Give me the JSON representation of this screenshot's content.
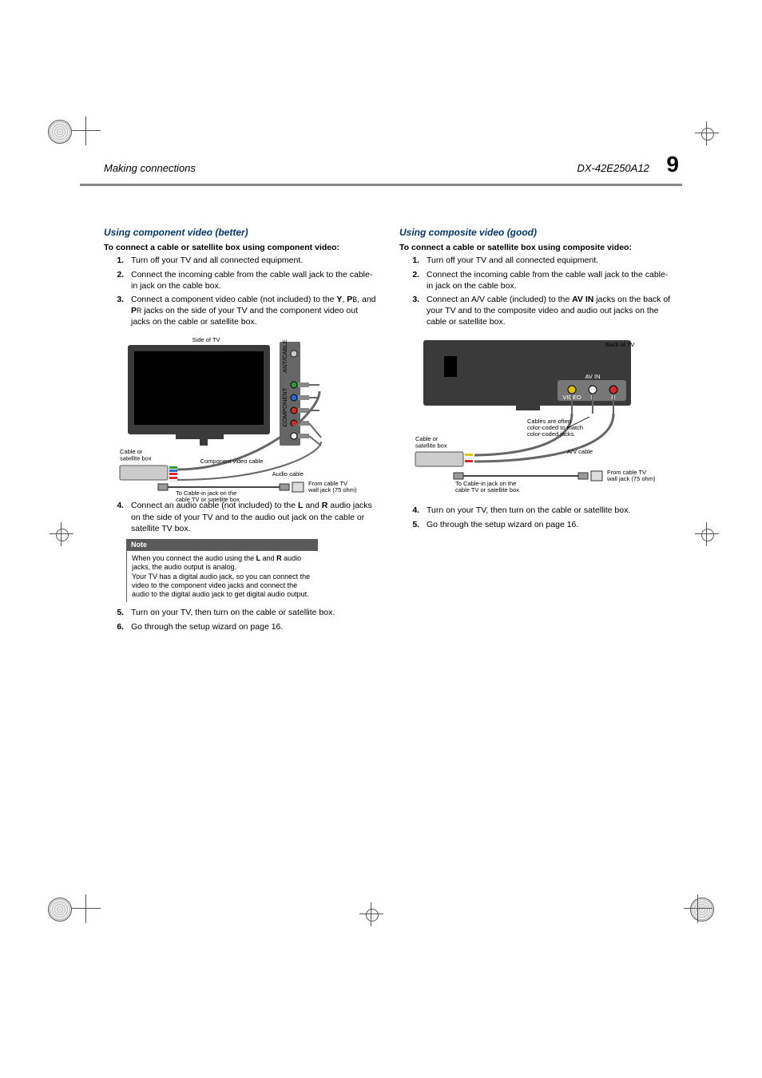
{
  "header": {
    "left": "Making connections",
    "model": "DX-42E250A12",
    "page_number": "9"
  },
  "colors": {
    "rule_gray": "#878787",
    "accent_blue": "#07396b",
    "note_bg": "#5a5a5a",
    "text": "#000000",
    "bg": "#ffffff"
  },
  "left_section": {
    "heading": "Using component video (better)",
    "procedure_title": "To connect a cable or satellite box using component video:",
    "steps_a": [
      "Turn off your TV and all connected equipment.",
      "Connect the incoming cable from the cable wall jack to the cable-in jack on the cable box.",
      "Connect a component video cable (not included) to the <b>Y</b>, <b>P</b><small>B</small>, and <b>P</b><small>R</small> jacks on the side of your TV and the component video out jacks on the cable or satellite box."
    ],
    "diagram1": {
      "side_label": "Side of TV",
      "ant_label": "ANT/CABLE",
      "comp_label": "COMPONENT",
      "box_label": "Cable or\nsatellite box",
      "comp_cable": "Component video cable",
      "audio_cable": "Audio cable",
      "from_wall": "From cable TV\nwall jack (75 ohm)",
      "cablein": "To Cable-in jack on the\ncable TV or satellite box",
      "jack_colors": [
        "#2aa02a",
        "#2a6bd4",
        "#d42a2a",
        "#d42a2a",
        "#f0f0f0"
      ]
    },
    "step4": "Connect an audio cable (not included) to the <b>L</b> and <b>R</b> audio jacks on the side of your TV and to the audio out jack on the cable or satellite TV box.",
    "note": {
      "title": "Note",
      "body": "When you connect the audio using the <b>L</b> and <b>R</b> audio jacks, the audio output is analog.<br>Your TV has a digital audio jack, so you can connect the video to the component video jacks and connect the audio to the digital audio jack to get digital audio output."
    },
    "step5": "Turn on your TV, then turn on the cable or satellite box.",
    "step6": "Go through the setup wizard on page 16."
  },
  "right_section": {
    "heading": "Using composite video (good)",
    "procedure_title": "To connect a cable or satellite box using composite video:",
    "steps_a": [
      "Turn off your TV and all connected equipment.",
      "Connect the incoming cable from the cable wall jack to the cable-in jack on the cable box.",
      "Connect an A/V cable (included) to the <b>AV IN</b> jacks on the back of your TV and to the composite video and audio out jacks on the cable or satellite box."
    ],
    "diagram2": {
      "back_label": "Back of TV",
      "avin_label": "AV IN",
      "v_label": "VIDEO",
      "l_label": "L",
      "r_label": "R",
      "box_label": "Cable or\nsatellite box",
      "color_note": "Cables are often\ncolor-coded to match\ncolor-coded jacks.",
      "av_cable": "A/V cable",
      "from_wall": "From cable TV\nwall jack (75 ohm)",
      "cablein": "To Cable-in jack on the\ncable TV or satellite box",
      "jack_colors": [
        "#e6c400",
        "#f0f0f0",
        "#d42a2a"
      ]
    },
    "step4": "Turn on your TV, then turn on the cable or satellite box.",
    "step5": "Go through the setup wizard on page 16."
  }
}
